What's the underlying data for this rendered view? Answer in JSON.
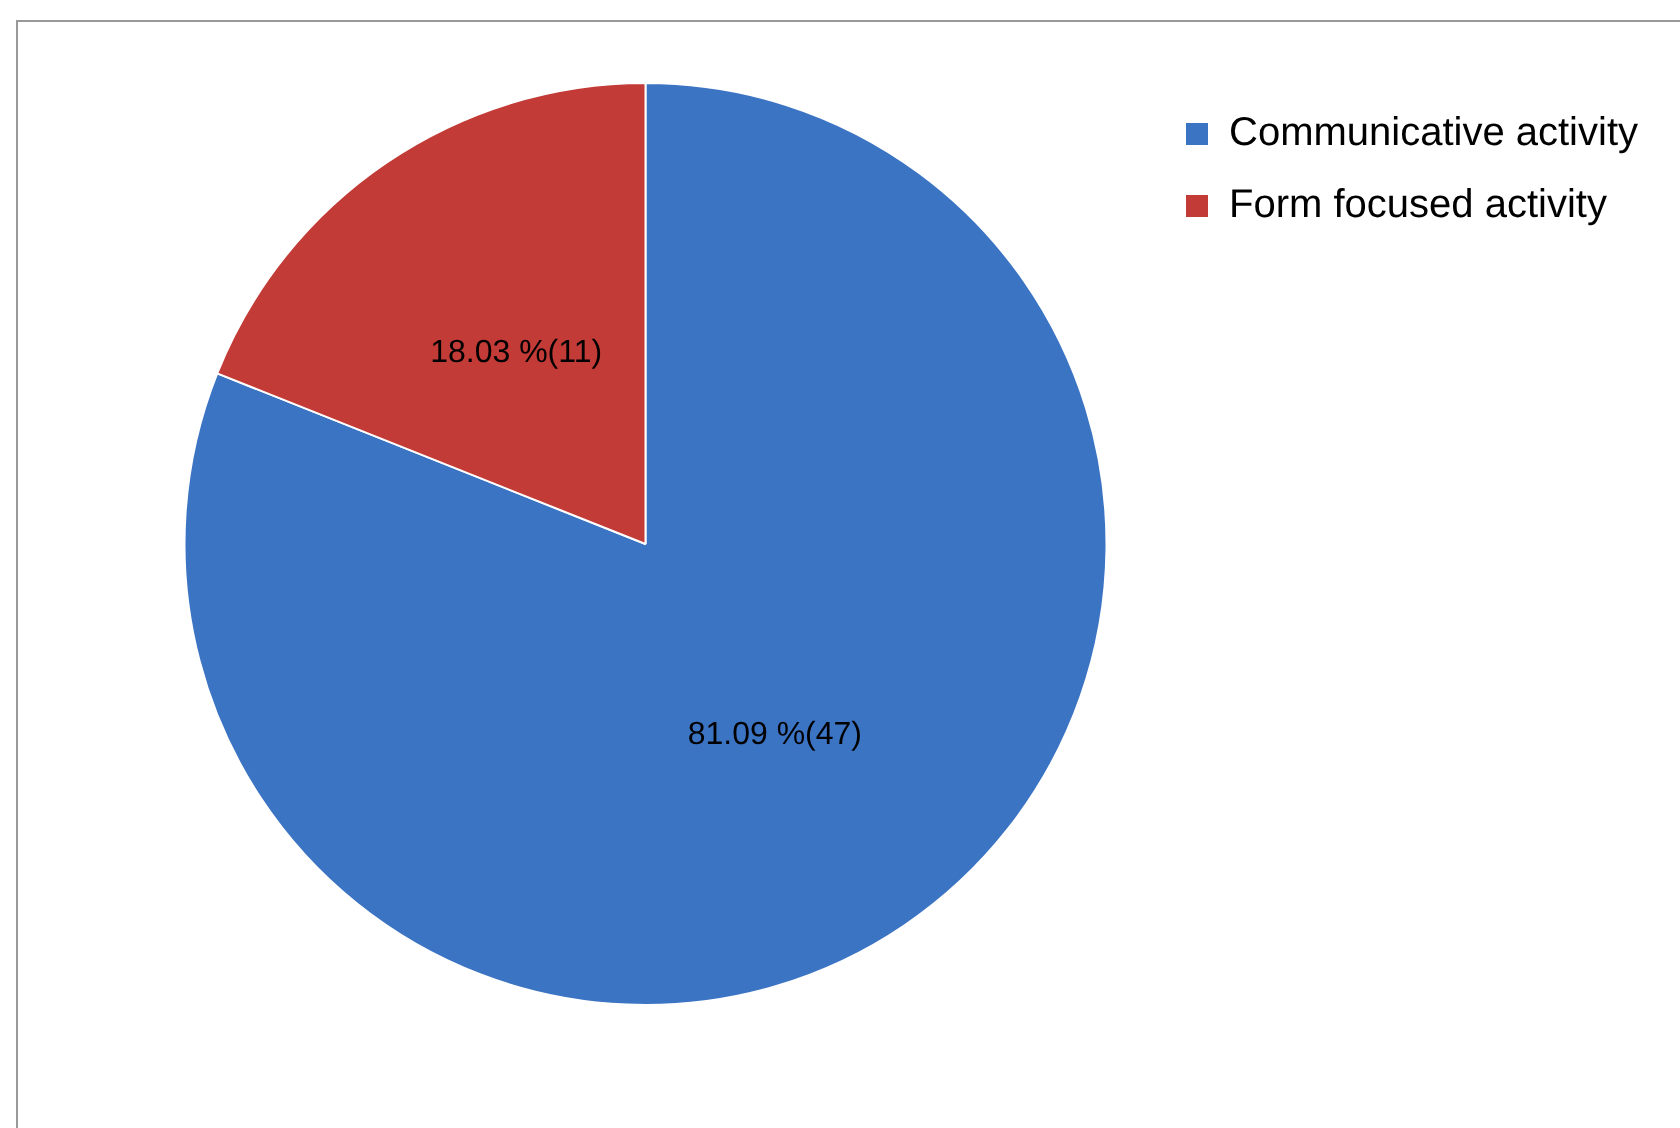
{
  "chart_data": {
    "type": "pie",
    "categories": [
      "Communicative activity",
      "Form focused activity"
    ],
    "values": [
      47,
      11
    ],
    "colors": [
      "#3c74c4",
      "#c23b36"
    ],
    "value_labels": [
      "81.09 %(47)",
      "18.03 %(11)"
    ],
    "legend": "top right"
  }
}
